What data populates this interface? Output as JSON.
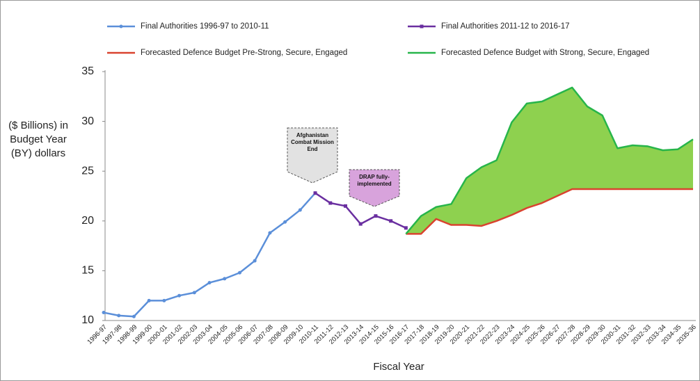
{
  "chart_data": {
    "type": "line",
    "x_label": "Fiscal Year",
    "y_label": "($ Billions) in Budget Year (BY) dollars",
    "categories": [
      "1996-97",
      "1997-98",
      "1998-99",
      "1999-00",
      "2000-01",
      "2001-02",
      "2002-03",
      "2003-04",
      "2004-05",
      "2005-06",
      "2006-07",
      "2007-08",
      "2008-09",
      "2009-10",
      "2010-11",
      "2011-12",
      "2012-13",
      "2013-14",
      "2014-15",
      "2015-16",
      "2016-17",
      "2017-18",
      "2018-19",
      "2019-20",
      "2020-21",
      "2021-22",
      "2022-23",
      "2023-24",
      "2024-25",
      "2025-26",
      "2026-27",
      "2027-28",
      "2028-29",
      "2029-30",
      "2030-31",
      "2031-32",
      "2032-33",
      "2033-34",
      "2034-35",
      "2035-36"
    ],
    "series": [
      {
        "name": "Final Authorities 1996-97 to 2010-11",
        "color": "#5b8fd9",
        "marker": "circle",
        "values": [
          10.8,
          10.5,
          10.4,
          12.0,
          12.0,
          12.5,
          12.8,
          13.8,
          14.2,
          14.8,
          16.0,
          18.8,
          19.9,
          21.1,
          22.8,
          null,
          null,
          null,
          null,
          null,
          null,
          null,
          null,
          null,
          null,
          null,
          null,
          null,
          null,
          null,
          null,
          null,
          null,
          null,
          null,
          null,
          null,
          null,
          null,
          null
        ]
      },
      {
        "name": "Final Authorities 2011-12 to 2016-17",
        "color": "#6a2fa0",
        "marker": "square",
        "values": [
          null,
          null,
          null,
          null,
          null,
          null,
          null,
          null,
          null,
          null,
          null,
          null,
          null,
          null,
          22.8,
          21.8,
          21.5,
          19.7,
          20.5,
          20.0,
          19.3,
          null,
          null,
          null,
          null,
          null,
          null,
          null,
          null,
          null,
          null,
          null,
          null,
          null,
          null,
          null,
          null,
          null,
          null,
          null
        ]
      },
      {
        "name": "Forecasted Defence Budget Pre-Strong, Secure, Engaged",
        "color": "#d9432f",
        "values": [
          null,
          null,
          null,
          null,
          null,
          null,
          null,
          null,
          null,
          null,
          null,
          null,
          null,
          null,
          null,
          null,
          null,
          null,
          null,
          null,
          18.7,
          18.7,
          20.2,
          19.6,
          19.6,
          19.5,
          20.0,
          20.6,
          21.3,
          21.8,
          22.5,
          23.2,
          23.2,
          23.2,
          23.2,
          23.2,
          23.2,
          23.2,
          23.2,
          23.2
        ]
      },
      {
        "name": "Forecasted Defence Budget with Strong, Secure, Engaged",
        "color": "#27b54a",
        "fill_color": "#8ed14f",
        "values": [
          null,
          null,
          null,
          null,
          null,
          null,
          null,
          null,
          null,
          null,
          null,
          null,
          null,
          null,
          null,
          null,
          null,
          null,
          null,
          null,
          18.7,
          20.5,
          21.4,
          21.7,
          24.3,
          25.4,
          26.1,
          29.9,
          31.8,
          32.0,
          32.7,
          33.4,
          31.5,
          30.6,
          27.3,
          27.6,
          27.5,
          27.1,
          27.2,
          28.2
        ]
      }
    ],
    "annotations": [
      "Afghanistan Combat Mission End",
      "DRAP fully-implemented"
    ],
    "ylim": [
      10,
      35
    ],
    "yticks": [
      10,
      15,
      20,
      25,
      30,
      35
    ],
    "grid": false
  }
}
